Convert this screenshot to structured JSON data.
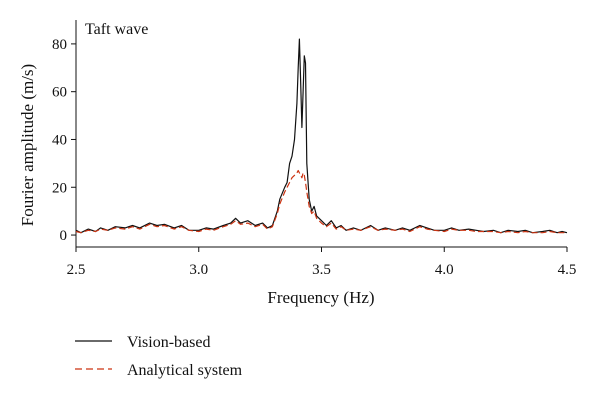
{
  "chart_data": {
    "type": "line",
    "annotation": "Taft wave",
    "xlabel": "Frequency (Hz)",
    "ylabel": "Fourier amplitude (m/s)",
    "xlim": [
      2.5,
      4.5
    ],
    "ylim": [
      -5,
      90
    ],
    "xticks": [
      "2.5",
      "3.0",
      "3.5",
      "4.0",
      "4.5"
    ],
    "yticks": [
      "0",
      "20",
      "40",
      "60",
      "80"
    ],
    "grid": false,
    "legend_position": "bottom-left, below plot",
    "series": [
      {
        "name": "Vision-based",
        "color": "#111111",
        "style": "solid",
        "x": [
          2.5,
          2.52,
          2.55,
          2.58,
          2.6,
          2.63,
          2.66,
          2.7,
          2.73,
          2.76,
          2.8,
          2.83,
          2.86,
          2.9,
          2.93,
          2.96,
          3.0,
          3.03,
          3.06,
          3.1,
          3.13,
          3.15,
          3.17,
          3.2,
          3.23,
          3.26,
          3.28,
          3.3,
          3.32,
          3.33,
          3.35,
          3.36,
          3.37,
          3.38,
          3.39,
          3.4,
          3.405,
          3.41,
          3.415,
          3.42,
          3.425,
          3.43,
          3.435,
          3.44,
          3.45,
          3.46,
          3.47,
          3.48,
          3.5,
          3.52,
          3.54,
          3.56,
          3.58,
          3.6,
          3.63,
          3.66,
          3.7,
          3.73,
          3.76,
          3.8,
          3.83,
          3.86,
          3.9,
          3.93,
          3.96,
          4.0,
          4.03,
          4.06,
          4.1,
          4.13,
          4.16,
          4.2,
          4.23,
          4.26,
          4.3,
          4.33,
          4.36,
          4.4,
          4.43,
          4.46,
          4.48,
          4.5
        ],
        "y": [
          2,
          1,
          2.5,
          1.5,
          3,
          2,
          3.5,
          3,
          4,
          3,
          5,
          4,
          4.5,
          3,
          4,
          2,
          2,
          3,
          2.5,
          4,
          5,
          7,
          5,
          6,
          4,
          5,
          3,
          4,
          10,
          15,
          20,
          22,
          30,
          33,
          40,
          55,
          70,
          82,
          65,
          45,
          60,
          75,
          72,
          30,
          15,
          10,
          12,
          8,
          6,
          4,
          6,
          3,
          4,
          2,
          3,
          2,
          4,
          2,
          3,
          2,
          3,
          2,
          4,
          3,
          2,
          2,
          3,
          2,
          2.5,
          2,
          1.5,
          2,
          1,
          2,
          1.5,
          2,
          1,
          1.5,
          2,
          1,
          1.5,
          1
        ]
      },
      {
        "name": "Analytical system",
        "color": "#cc3311",
        "style": "dashed",
        "x": [
          2.5,
          2.52,
          2.55,
          2.58,
          2.6,
          2.63,
          2.66,
          2.7,
          2.73,
          2.76,
          2.8,
          2.83,
          2.86,
          2.9,
          2.93,
          2.96,
          3.0,
          3.03,
          3.06,
          3.1,
          3.13,
          3.15,
          3.17,
          3.2,
          3.23,
          3.26,
          3.28,
          3.3,
          3.32,
          3.33,
          3.35,
          3.36,
          3.37,
          3.38,
          3.39,
          3.4,
          3.405,
          3.41,
          3.415,
          3.42,
          3.425,
          3.43,
          3.435,
          3.44,
          3.45,
          3.46,
          3.47,
          3.48,
          3.5,
          3.52,
          3.54,
          3.56,
          3.58,
          3.6,
          3.63,
          3.66,
          3.7,
          3.73,
          3.76,
          3.8,
          3.83,
          3.86,
          3.9,
          3.93,
          3.96,
          4.0,
          4.03,
          4.06,
          4.1,
          4.13,
          4.16,
          4.2,
          4.23,
          4.26,
          4.3,
          4.33,
          4.36,
          4.4,
          4.43,
          4.46,
          4.48,
          4.5
        ],
        "y": [
          1.5,
          1,
          2,
          1.5,
          2.5,
          2,
          3,
          2.5,
          3.5,
          2.5,
          4.5,
          3.5,
          4,
          2.5,
          3.5,
          2,
          1.5,
          2.5,
          2,
          3.5,
          4.5,
          6,
          4.5,
          5,
          3.5,
          4.5,
          2.5,
          3.5,
          9,
          13,
          18,
          20,
          22,
          24,
          25,
          26,
          27,
          26,
          25,
          24,
          26,
          25,
          22,
          18,
          12,
          9,
          10,
          7,
          5,
          3.5,
          5,
          2.5,
          3.5,
          2,
          2.5,
          2,
          3.5,
          2,
          2.5,
          2,
          2.5,
          1.5,
          3.5,
          2.5,
          2,
          1.5,
          2.5,
          2,
          2,
          1.5,
          1.5,
          1.5,
          1,
          1.5,
          1,
          1.5,
          1,
          1,
          1.5,
          1,
          1,
          1
        ]
      }
    ]
  }
}
